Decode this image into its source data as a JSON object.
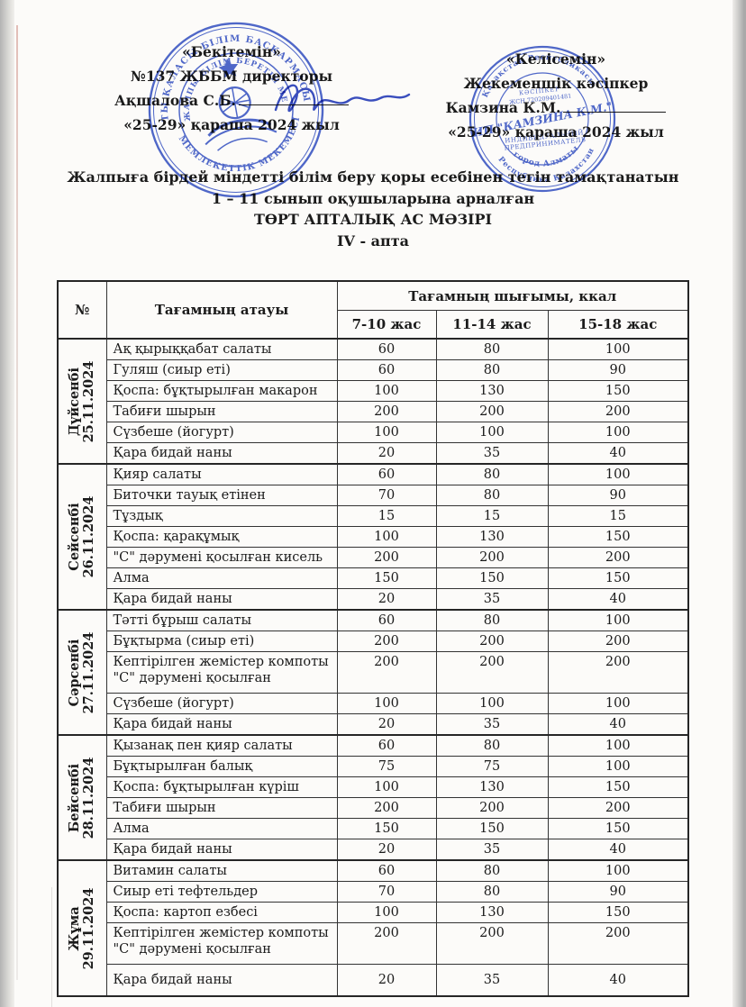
{
  "colors": {
    "ink": "#1b1b1b",
    "stamp_blue": "#2e4cc3",
    "signature_blue": "#2940bd",
    "table_border": "#2e2e2e",
    "paper": "#fcfbf9"
  },
  "approval_left": {
    "line1": "«Бекітемін»",
    "line2": "№137 ЖББМ директоры",
    "name": "Ақшалова С.Б.",
    "date_line": "«25-29» қараша  2024 жыл"
  },
  "approval_right": {
    "line1": "«Келісемін»",
    "line2": "Жекеменшік кәсіпкер",
    "name": "Камзина К.М.",
    "date_line": "«25-29» қараша  2024 жыл"
  },
  "title": {
    "line1": "Жалпыға бірдей міндетті білім беру қоры есебінен тегін тамақтанатын",
    "line2": "1 – 11 сынып оқушыларына арналған",
    "line3": "ТӨРТ АПТАЛЫҚ АС МӘЗІРІ",
    "line4": "IV - апта"
  },
  "stamps": {
    "school": {
      "arc_top": "АЛМАТЫ ҚАЛАСЫ БІЛІМ БАСҚАРМАСЫНЫҢ",
      "arc_bottom": "МЕМЛЕКЕТТІК МЕКЕМЕСІ",
      "arc_inner": "№137 ЖАЛПЫ БІЛІМ БЕРЕТІН МЕКТЕБІ"
    },
    "entrepreneur": {
      "arc_top": "Қазақстан Республикасы",
      "arc_bottom": "Республика Казахстан",
      "arc_city": "город Алматы",
      "line1": "КӘСІПКЕР",
      "line2": "ЖСН 720209401481",
      "line3": "ИП \"КАМЗИНА К.М.\"",
      "line4": "ИНДИВИДУАЛЬНЫЙ",
      "line5": "ПРЕДПРИНИМАТЕЛЬ"
    }
  },
  "table": {
    "header": {
      "no": "№",
      "dish": "Тағамның атауы",
      "group": "Тағамның шығымы, ккал",
      "ages": [
        "7-10 жас",
        "11-14 жас",
        "15-18 жас"
      ]
    },
    "days": [
      {
        "day": "Дүйсенбі",
        "date": "25.11.2024",
        "rows": [
          {
            "name": "Ақ қырыққабат салаты",
            "values": [
              60,
              80,
              100
            ]
          },
          {
            "name": "Гуляш (сиыр еті)",
            "values": [
              60,
              80,
              90
            ]
          },
          {
            "name": "Қоспа: бұқтырылған макарон",
            "values": [
              100,
              130,
              150
            ]
          },
          {
            "name": "Табиғи шырын",
            "values": [
              200,
              200,
              200
            ]
          },
          {
            "name": "Сүзбеше (йогурт)",
            "values": [
              100,
              100,
              100
            ]
          },
          {
            "name": "Қара бидай наны",
            "values": [
              20,
              35,
              40
            ]
          }
        ]
      },
      {
        "day": "Сейсенбі",
        "date": "26.11.2024",
        "rows": [
          {
            "name": "Қияр салаты",
            "values": [
              60,
              80,
              100
            ]
          },
          {
            "name": "Биточки тауық етінен",
            "values": [
              70,
              80,
              90
            ]
          },
          {
            "name": "Тұздық",
            "values": [
              15,
              15,
              15
            ]
          },
          {
            "name": "Қоспа: қарақұмық",
            "values": [
              100,
              130,
              150
            ]
          },
          {
            "name": "\"С\" дәрумені қосылған кисель",
            "values": [
              200,
              200,
              200
            ]
          },
          {
            "name": "Алма",
            "values": [
              150,
              150,
              150
            ]
          },
          {
            "name": "Қара бидай наны",
            "values": [
              20,
              35,
              40
            ]
          }
        ]
      },
      {
        "day": "Сәрсенбі",
        "date": "27.11.2024",
        "rows": [
          {
            "name": "Тәтті бұрыш салаты",
            "values": [
              60,
              80,
              100
            ]
          },
          {
            "name": "Бұқтырма (сиыр еті)",
            "values": [
              200,
              200,
              200
            ]
          },
          {
            "name": "Кептірілген жемістер компоты \"С\" дәрумені қосылған",
            "values": [
              200,
              200,
              200
            ],
            "tall": true
          },
          {
            "name": "Сүзбеше (йогурт)",
            "values": [
              100,
              100,
              100
            ]
          },
          {
            "name": "Қара бидай наны",
            "values": [
              20,
              35,
              40
            ]
          }
        ]
      },
      {
        "day": "Бейсенбі",
        "date": "28.11.2024",
        "rows": [
          {
            "name": "Қызанақ пен қияр салаты",
            "values": [
              60,
              80,
              100
            ]
          },
          {
            "name": "Бұқтырылған балық",
            "values": [
              75,
              75,
              100
            ]
          },
          {
            "name": "Қоспа: бұқтырылған күріш",
            "values": [
              100,
              130,
              150
            ]
          },
          {
            "name": "Табиғи шырын",
            "values": [
              200,
              200,
              200
            ]
          },
          {
            "name": "Алма",
            "values": [
              150,
              150,
              150
            ]
          },
          {
            "name": "Қара бидай наны",
            "values": [
              20,
              35,
              40
            ]
          }
        ]
      },
      {
        "day": "Жұма",
        "date": "29.11.2024",
        "rows": [
          {
            "name": "Витамин салаты",
            "values": [
              60,
              80,
              100
            ]
          },
          {
            "name": "Сиыр еті тефтельдер",
            "values": [
              70,
              80,
              90
            ]
          },
          {
            "name": "Қоспа: картоп езбесі",
            "values": [
              100,
              130,
              150
            ]
          },
          {
            "name": "Кептірілген жемістер компоты \"С\" дәрумені қосылған",
            "values": [
              200,
              200,
              200
            ],
            "tall": true
          },
          {
            "name": "Қара бидай наны",
            "values": [
              20,
              35,
              40
            ],
            "last": true
          }
        ]
      }
    ]
  }
}
